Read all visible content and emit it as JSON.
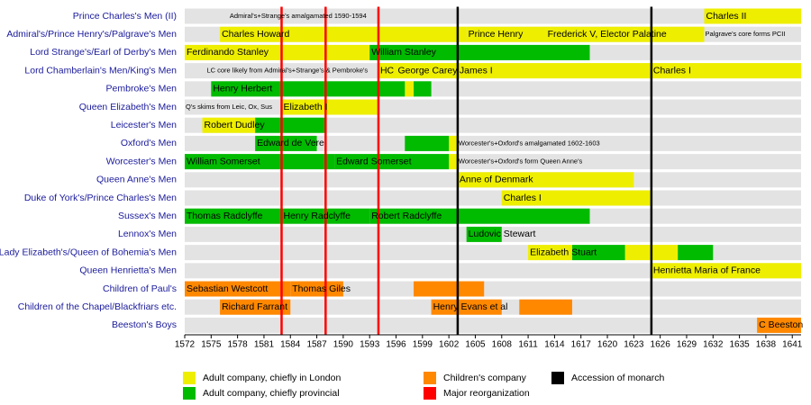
{
  "chart_data": {
    "type": "timeline",
    "categories": [
      "Prince Charles's Men (II)",
      "Admiral's/Prince Henry's/Palgrave's Men",
      "Lord Strange's/Earl of Derby's Men",
      "Lord Chamberlain's Men/King's Men",
      "Pembroke's Men",
      "Queen Elizabeth's Men",
      "Leicester's Men",
      "Oxford's Men",
      "Worcester's Men",
      "Queen Anne's Men",
      "Duke of York's/Prince Charles's Men",
      "Sussex's Men",
      "Lennox's Men",
      "Lady Elizabeth's/Queen of Bohemia's Men",
      "Queen Henrietta's Men",
      "Children of Paul's",
      "Children of the Chapel/Blackfriars etc.",
      "Beeston's Boys"
    ],
    "xlim": [
      1572,
      1642
    ],
    "xticks": [
      1572,
      1575,
      1578,
      1581,
      1584,
      1587,
      1590,
      1593,
      1596,
      1599,
      1602,
      1605,
      1608,
      1611,
      1614,
      1617,
      1620,
      1623,
      1626,
      1629,
      1632,
      1635,
      1638,
      1641
    ],
    "series": [
      {
        "name": "Adult company, chiefly in London",
        "color": "#eeee00",
        "bars": [
          {
            "row": 0,
            "start": 1631,
            "end": 1642,
            "label": "Charles II"
          },
          {
            "row": 1,
            "start": 1576,
            "end": 1604,
            "label": "Charles Howard"
          },
          {
            "row": 1,
            "start": 1604,
            "end": 1613,
            "label": "Prince Henry"
          },
          {
            "row": 1,
            "start": 1613,
            "end": 1631,
            "label": "Frederick V, Elector Palatine"
          },
          {
            "row": 2,
            "start": 1572,
            "end": 1593,
            "label": "Ferdinando Stanley"
          },
          {
            "row": 3,
            "start": 1594,
            "end": 1596,
            "label": "HC"
          },
          {
            "row": 3,
            "start": 1596,
            "end": 1603,
            "label": "George Carey"
          },
          {
            "row": 3,
            "start": 1603,
            "end": 1625,
            "label": "James I"
          },
          {
            "row": 3,
            "start": 1625,
            "end": 1642,
            "label": "Charles I"
          },
          {
            "row": 4,
            "start": 1597,
            "end": 1598
          },
          {
            "row": 5,
            "start": 1583,
            "end": 1594,
            "label": "Elizabeth I"
          },
          {
            "row": 6,
            "start": 1574,
            "end": 1580,
            "label": "Robert Dudley"
          },
          {
            "row": 7,
            "start": 1602,
            "end": 1603
          },
          {
            "row": 8,
            "start": 1602,
            "end": 1603
          },
          {
            "row": 9,
            "start": 1603,
            "end": 1623,
            "label": "Anne of Denmark"
          },
          {
            "row": 10,
            "start": 1608,
            "end": 1625,
            "label": "Charles I"
          },
          {
            "row": 13,
            "start": 1611,
            "end": 1616,
            "label": "Elizabeth Stuart"
          },
          {
            "row": 13,
            "start": 1622,
            "end": 1628
          },
          {
            "row": 14,
            "start": 1625,
            "end": 1642,
            "label": "Henrietta Maria of France"
          }
        ]
      },
      {
        "name": "Adult company, chiefly provincial",
        "color": "#00bb00",
        "bars": [
          {
            "row": 2,
            "start": 1593,
            "end": 1618,
            "label": "William Stanley"
          },
          {
            "row": 4,
            "start": 1575,
            "end": 1597,
            "label": "Henry Herbert"
          },
          {
            "row": 4,
            "start": 1598,
            "end": 1600
          },
          {
            "row": 6,
            "start": 1580,
            "end": 1588
          },
          {
            "row": 7,
            "start": 1580,
            "end": 1587,
            "label": "Edward de Vere"
          },
          {
            "row": 7,
            "start": 1597,
            "end": 1602
          },
          {
            "row": 8,
            "start": 1572,
            "end": 1589,
            "label": "William Somerset"
          },
          {
            "row": 8,
            "start": 1589,
            "end": 1602,
            "label": "Edward Somerset"
          },
          {
            "row": 11,
            "start": 1572,
            "end": 1583,
            "label": "Thomas Radclyffe"
          },
          {
            "row": 11,
            "start": 1583,
            "end": 1593,
            "label": "Henry Radclyffe"
          },
          {
            "row": 11,
            "start": 1593,
            "end": 1618,
            "label": "Robert Radclyffe"
          },
          {
            "row": 12,
            "start": 1604,
            "end": 1608,
            "label": "Ludovic Stewart"
          },
          {
            "row": 13,
            "start": 1616,
            "end": 1622
          },
          {
            "row": 13,
            "start": 1628,
            "end": 1632
          }
        ]
      },
      {
        "name": "Children's company",
        "color": "#ff8800",
        "bars": [
          {
            "row": 15,
            "start": 1572,
            "end": 1584,
            "label": "Sebastian Westcott"
          },
          {
            "row": 15,
            "start": 1584,
            "end": 1590,
            "label": "Thomas Giles"
          },
          {
            "row": 15,
            "start": 1598,
            "end": 1606
          },
          {
            "row": 16,
            "start": 1576,
            "end": 1584,
            "label": "Richard Farrant"
          },
          {
            "row": 16,
            "start": 1600,
            "end": 1608,
            "label": "Henry Evans et al"
          },
          {
            "row": 16,
            "start": 1610,
            "end": 1616
          },
          {
            "row": 17,
            "start": 1637,
            "end": 1642,
            "label": "C Beeston"
          }
        ]
      },
      {
        "name": "Major reorganization",
        "color": "#ff0000",
        "x": [
          1583,
          1588,
          1594
        ]
      },
      {
        "name": "Accession of monarch",
        "color": "#000000",
        "x": [
          1603,
          1625
        ]
      }
    ],
    "annotations": [
      {
        "row": 0,
        "x": 1577,
        "text": "Admiral's+Strange's amalgamated 1590-1594"
      },
      {
        "row": 1,
        "x": 1631,
        "text": "Palgrave's core forms PCII"
      },
      {
        "row": 3,
        "x": 1574.4,
        "text": "LC core likely from Admiral's+Strange's & Pembroke's"
      },
      {
        "row": 5,
        "x": 1572,
        "text": "Q's skims from Leic, Ox, Sus"
      },
      {
        "row": 7,
        "x": 1603,
        "text": "Worcester's+Oxford's amalgamated 1602-1603"
      },
      {
        "row": 8,
        "x": 1603,
        "text": "Worcester's+Oxford's form Queen Anne's"
      }
    ]
  }
}
